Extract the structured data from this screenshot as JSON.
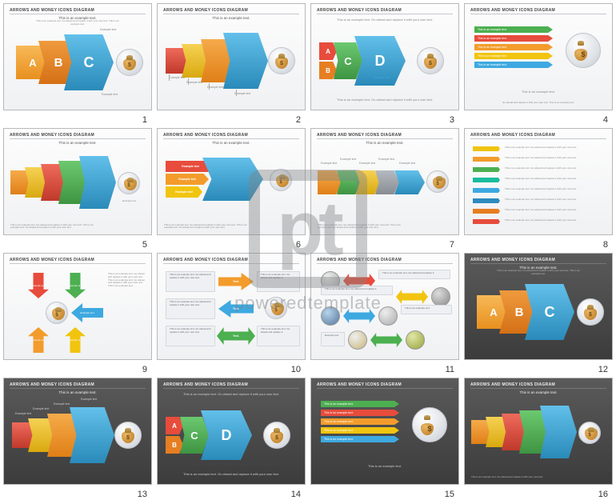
{
  "watermark": {
    "logo": "pt",
    "text": "poweredtemplate"
  },
  "common": {
    "title": "ARROWS AND MONEY ICONS DIAGRAM",
    "example": "This is an example text.",
    "replace": "This is an example text. Go ahead and replace it with your own text.",
    "example_txt": "Example text",
    "example_txt_upper": "Example Text",
    "text_label": "Text."
  },
  "colors": {
    "orange": "#f39c2c",
    "orange2": "#e67e22",
    "red": "#e74c3c",
    "yellow": "#f1c40f",
    "blue": "#3da9e0",
    "blue_dk": "#2c8bbf",
    "green": "#4caf50",
    "green2": "#8bc34a",
    "teal": "#1abc9c",
    "gray": "#9aa0a7",
    "purple": "#8e6bb5"
  },
  "slides": [
    {
      "n": 1,
      "bg": "light",
      "labels": [
        "A",
        "B",
        "C"
      ],
      "chev_colors": [
        "#f39c2c",
        "#e67e22",
        "#3da9e0"
      ]
    },
    {
      "n": 2,
      "bg": "light",
      "chev_colors": [
        "#e74c3c",
        "#f1c40f",
        "#f39c2c",
        "#3da9e0"
      ]
    },
    {
      "n": 3,
      "bg": "light",
      "labels": [
        "A",
        "B",
        "C",
        "D"
      ],
      "chev_colors": [
        "#e74c3c",
        "#f39c2c",
        "#4caf50",
        "#3da9e0"
      ]
    },
    {
      "n": 4,
      "bg": "light",
      "bars": [
        {
          "c": "#4caf50"
        },
        {
          "c": "#e74c3c"
        },
        {
          "c": "#f39c2c"
        },
        {
          "c": "#f1c40f"
        },
        {
          "c": "#3da9e0"
        }
      ]
    },
    {
      "n": 5,
      "bg": "light",
      "chev_colors": [
        "#f39c2c",
        "#f1c40f",
        "#e74c3c",
        "#4caf50",
        "#3da9e0"
      ]
    },
    {
      "n": 6,
      "bg": "light",
      "boxes": [
        "#e74c3c",
        "#f39c2c",
        "#f1c40f"
      ],
      "arrow": "#3da9e0"
    },
    {
      "n": 7,
      "bg": "light",
      "chev_colors": [
        "#f39c2c",
        "#4caf50",
        "#f1c40f",
        "#9aa0a7",
        "#3da9e0"
      ]
    },
    {
      "n": 8,
      "bg": "light",
      "bars": [
        {
          "c": "#f1c40f"
        },
        {
          "c": "#f39c2c"
        },
        {
          "c": "#4caf50"
        },
        {
          "c": "#1abc9c"
        },
        {
          "c": "#3da9e0"
        },
        {
          "c": "#2c8bbf"
        },
        {
          "c": "#e67e22"
        },
        {
          "c": "#e74c3c"
        }
      ]
    },
    {
      "n": 9,
      "bg": "light",
      "arrows": [
        {
          "c": "#e74c3c"
        },
        {
          "c": "#4caf50"
        },
        {
          "c": "#3da9e0"
        },
        {
          "c": "#f1c40f"
        },
        {
          "c": "#f39c2c"
        }
      ]
    },
    {
      "n": 10,
      "bg": "light",
      "arrows": [
        "#f39c2c",
        "#3da9e0",
        "#4caf50"
      ]
    },
    {
      "n": 11,
      "bg": "light",
      "arrows": [
        "#e74c3c",
        "#f1c40f",
        "#3da9e0",
        "#4caf50"
      ]
    },
    {
      "n": 12,
      "bg": "dark",
      "labels": [
        "A",
        "B",
        "C"
      ],
      "chev_colors": [
        "#f39c2c",
        "#e67e22",
        "#3da9e0"
      ]
    },
    {
      "n": 13,
      "bg": "dark",
      "chev_colors": [
        "#e74c3c",
        "#f1c40f",
        "#f39c2c",
        "#3da9e0"
      ]
    },
    {
      "n": 14,
      "bg": "dark",
      "labels": [
        "A",
        "B",
        "C",
        "D"
      ],
      "chev_colors": [
        "#e74c3c",
        "#f39c2c",
        "#4caf50",
        "#3da9e0"
      ]
    },
    {
      "n": 15,
      "bg": "dark",
      "bars": [
        {
          "c": "#4caf50"
        },
        {
          "c": "#e74c3c"
        },
        {
          "c": "#f39c2c"
        },
        {
          "c": "#f1c40f"
        },
        {
          "c": "#3da9e0"
        }
      ]
    },
    {
      "n": 16,
      "bg": "dark",
      "chev_colors": [
        "#f39c2c",
        "#f1c40f",
        "#e74c3c",
        "#4caf50",
        "#3da9e0"
      ]
    }
  ]
}
